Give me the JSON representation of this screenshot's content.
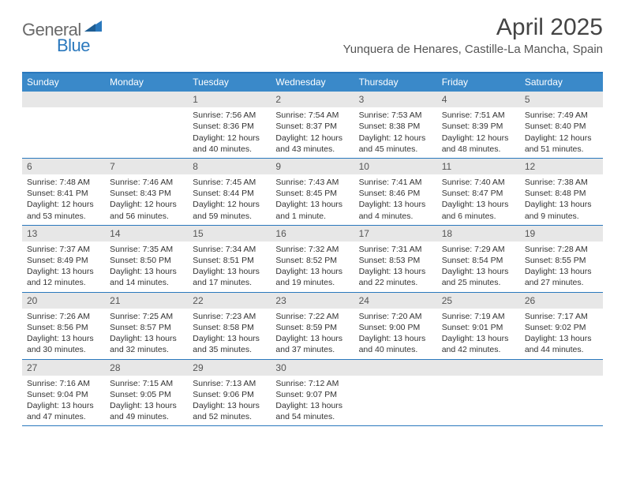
{
  "logo": {
    "part1": "General",
    "part2": "Blue"
  },
  "title": "April 2025",
  "location": "Yunquera de Henares, Castille-La Mancha, Spain",
  "colors": {
    "header_bar": "#3a89c9",
    "header_border": "#2a78bd",
    "daynum_bg": "#e7e7e7",
    "logo_gray": "#6a6a6a",
    "logo_blue": "#2a78bd"
  },
  "dow": [
    "Sunday",
    "Monday",
    "Tuesday",
    "Wednesday",
    "Thursday",
    "Friday",
    "Saturday"
  ],
  "weeks": [
    [
      {
        "n": "",
        "empty": true
      },
      {
        "n": "",
        "empty": true
      },
      {
        "n": "1",
        "sunrise": "7:56 AM",
        "sunset": "8:36 PM",
        "daylight": "12 hours and 40 minutes."
      },
      {
        "n": "2",
        "sunrise": "7:54 AM",
        "sunset": "8:37 PM",
        "daylight": "12 hours and 43 minutes."
      },
      {
        "n": "3",
        "sunrise": "7:53 AM",
        "sunset": "8:38 PM",
        "daylight": "12 hours and 45 minutes."
      },
      {
        "n": "4",
        "sunrise": "7:51 AM",
        "sunset": "8:39 PM",
        "daylight": "12 hours and 48 minutes."
      },
      {
        "n": "5",
        "sunrise": "7:49 AM",
        "sunset": "8:40 PM",
        "daylight": "12 hours and 51 minutes."
      }
    ],
    [
      {
        "n": "6",
        "sunrise": "7:48 AM",
        "sunset": "8:41 PM",
        "daylight": "12 hours and 53 minutes."
      },
      {
        "n": "7",
        "sunrise": "7:46 AM",
        "sunset": "8:43 PM",
        "daylight": "12 hours and 56 minutes."
      },
      {
        "n": "8",
        "sunrise": "7:45 AM",
        "sunset": "8:44 PM",
        "daylight": "12 hours and 59 minutes."
      },
      {
        "n": "9",
        "sunrise": "7:43 AM",
        "sunset": "8:45 PM",
        "daylight": "13 hours and 1 minute."
      },
      {
        "n": "10",
        "sunrise": "7:41 AM",
        "sunset": "8:46 PM",
        "daylight": "13 hours and 4 minutes."
      },
      {
        "n": "11",
        "sunrise": "7:40 AM",
        "sunset": "8:47 PM",
        "daylight": "13 hours and 6 minutes."
      },
      {
        "n": "12",
        "sunrise": "7:38 AM",
        "sunset": "8:48 PM",
        "daylight": "13 hours and 9 minutes."
      }
    ],
    [
      {
        "n": "13",
        "sunrise": "7:37 AM",
        "sunset": "8:49 PM",
        "daylight": "13 hours and 12 minutes."
      },
      {
        "n": "14",
        "sunrise": "7:35 AM",
        "sunset": "8:50 PM",
        "daylight": "13 hours and 14 minutes."
      },
      {
        "n": "15",
        "sunrise": "7:34 AM",
        "sunset": "8:51 PM",
        "daylight": "13 hours and 17 minutes."
      },
      {
        "n": "16",
        "sunrise": "7:32 AM",
        "sunset": "8:52 PM",
        "daylight": "13 hours and 19 minutes."
      },
      {
        "n": "17",
        "sunrise": "7:31 AM",
        "sunset": "8:53 PM",
        "daylight": "13 hours and 22 minutes."
      },
      {
        "n": "18",
        "sunrise": "7:29 AM",
        "sunset": "8:54 PM",
        "daylight": "13 hours and 25 minutes."
      },
      {
        "n": "19",
        "sunrise": "7:28 AM",
        "sunset": "8:55 PM",
        "daylight": "13 hours and 27 minutes."
      }
    ],
    [
      {
        "n": "20",
        "sunrise": "7:26 AM",
        "sunset": "8:56 PM",
        "daylight": "13 hours and 30 minutes."
      },
      {
        "n": "21",
        "sunrise": "7:25 AM",
        "sunset": "8:57 PM",
        "daylight": "13 hours and 32 minutes."
      },
      {
        "n": "22",
        "sunrise": "7:23 AM",
        "sunset": "8:58 PM",
        "daylight": "13 hours and 35 minutes."
      },
      {
        "n": "23",
        "sunrise": "7:22 AM",
        "sunset": "8:59 PM",
        "daylight": "13 hours and 37 minutes."
      },
      {
        "n": "24",
        "sunrise": "7:20 AM",
        "sunset": "9:00 PM",
        "daylight": "13 hours and 40 minutes."
      },
      {
        "n": "25",
        "sunrise": "7:19 AM",
        "sunset": "9:01 PM",
        "daylight": "13 hours and 42 minutes."
      },
      {
        "n": "26",
        "sunrise": "7:17 AM",
        "sunset": "9:02 PM",
        "daylight": "13 hours and 44 minutes."
      }
    ],
    [
      {
        "n": "27",
        "sunrise": "7:16 AM",
        "sunset": "9:04 PM",
        "daylight": "13 hours and 47 minutes."
      },
      {
        "n": "28",
        "sunrise": "7:15 AM",
        "sunset": "9:05 PM",
        "daylight": "13 hours and 49 minutes."
      },
      {
        "n": "29",
        "sunrise": "7:13 AM",
        "sunset": "9:06 PM",
        "daylight": "13 hours and 52 minutes."
      },
      {
        "n": "30",
        "sunrise": "7:12 AM",
        "sunset": "9:07 PM",
        "daylight": "13 hours and 54 minutes."
      },
      {
        "n": "",
        "empty": true
      },
      {
        "n": "",
        "empty": true
      },
      {
        "n": "",
        "empty": true
      }
    ]
  ],
  "labels": {
    "sunrise": "Sunrise: ",
    "sunset": "Sunset: ",
    "daylight": "Daylight: "
  }
}
